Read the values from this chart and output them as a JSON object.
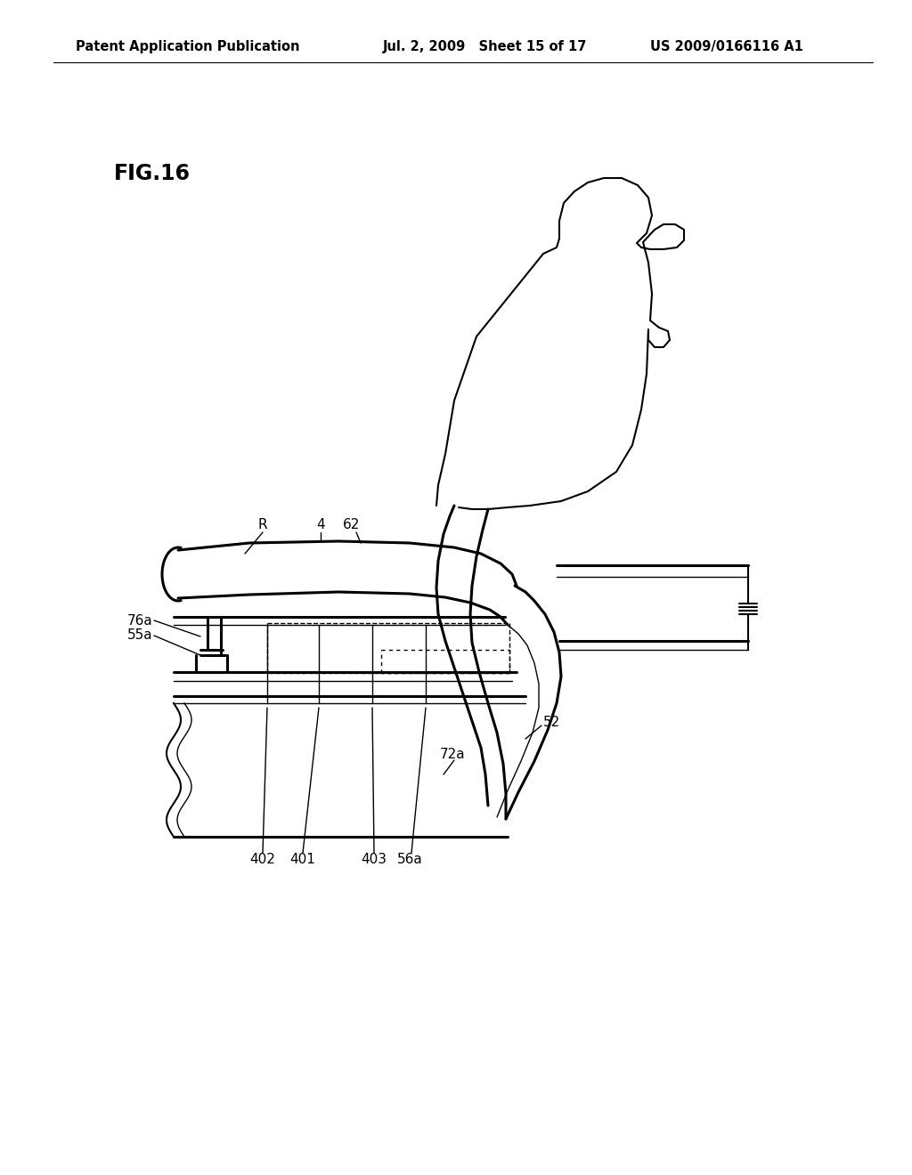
{
  "header_left": "Patent Application Publication",
  "header_mid": "Jul. 2, 2009   Sheet 15 of 17",
  "header_right": "US 2009/0166116 A1",
  "fig_label": "FIG.16",
  "bg_color": "#ffffff"
}
